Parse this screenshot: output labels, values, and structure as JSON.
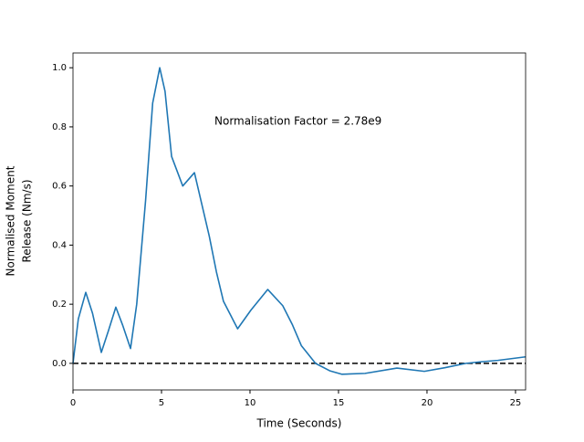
{
  "chart_data": {
    "type": "line",
    "xlabel": "Time (Seconds)",
    "ylabel": [
      "Normalised Moment",
      "Release (Nm/s)"
    ],
    "annotation": "Normalisation Factor = 2.78e9",
    "series": [
      {
        "color": "#1f77b4",
        "x": [
          0,
          0.3,
          0.72,
          1.1,
          1.6,
          2.0,
          2.42,
          2.8,
          3.25,
          3.6,
          4.1,
          4.5,
          4.9,
          5.2,
          5.57,
          6.2,
          6.86,
          7.7,
          8.1,
          8.5,
          9.3,
          10.05,
          11.0,
          11.85,
          12.4,
          12.9,
          13.7,
          14.5,
          15.2,
          16.5,
          18.3,
          19.85,
          21.0,
          22.2,
          23.0,
          24.0,
          25.57
        ],
        "values": [
          0,
          0.15,
          0.24,
          0.17,
          0.037,
          0.11,
          0.19,
          0.13,
          0.05,
          0.2,
          0.55,
          0.88,
          1.0,
          0.92,
          0.7,
          0.6,
          0.645,
          0.43,
          0.31,
          0.21,
          0.117,
          0.18,
          0.25,
          0.195,
          0.13,
          0.06,
          0.0,
          -0.025,
          -0.037,
          -0.034,
          -0.016,
          -0.027,
          -0.015,
          0.0,
          0.005,
          0.01,
          0.022
        ]
      }
    ],
    "reference_line": {
      "value": 0,
      "color": "#000000",
      "dashed": true
    },
    "xlim": [
      0,
      25.57
    ],
    "ylim": [
      -0.09,
      1.05
    ],
    "xticks": [
      0,
      5,
      10,
      15,
      20,
      25
    ],
    "yticks": [
      {
        "value": 0,
        "label": "0.0"
      },
      0.2,
      0.4,
      0.6,
      0.8,
      {
        "value": 1,
        "label": "1.0"
      }
    ]
  }
}
